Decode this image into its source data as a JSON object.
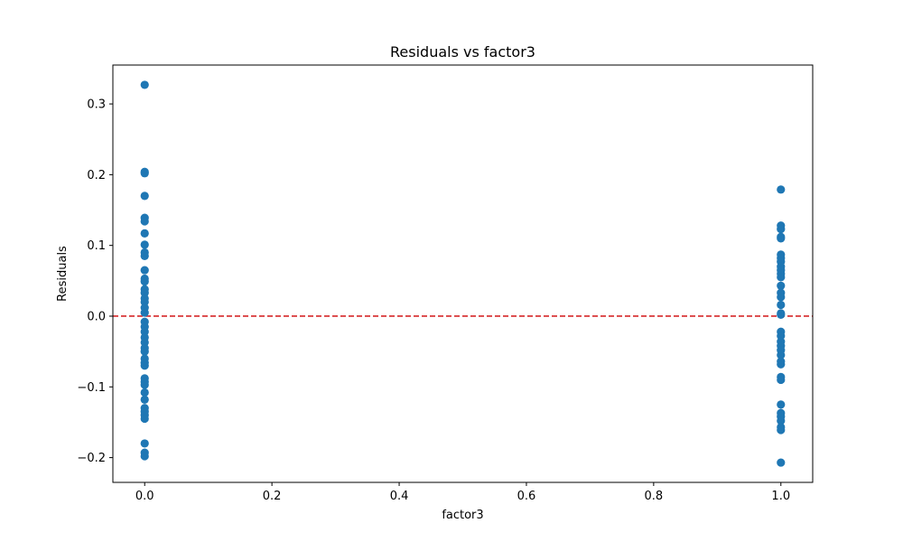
{
  "chart_data": {
    "type": "scatter",
    "title": "Residuals vs factor3",
    "xlabel": "factor3",
    "ylabel": "Residuals",
    "xlim": [
      -0.05,
      1.05
    ],
    "ylim": [
      -0.235,
      0.355
    ],
    "xticks": [
      0.0,
      0.2,
      0.4,
      0.6,
      0.8,
      1.0
    ],
    "xtick_labels": [
      "0.0",
      "0.2",
      "0.4",
      "0.6",
      "0.8",
      "1.0"
    ],
    "yticks": [
      -0.2,
      -0.1,
      0.0,
      0.1,
      0.2,
      0.3
    ],
    "ytick_labels": [
      "−0.2",
      "−0.1",
      "0.0",
      "0.1",
      "0.2",
      "0.3"
    ],
    "grid": false,
    "reference_line": {
      "y": 0.0,
      "style": "dashed",
      "color": "#d62728"
    },
    "marker_color": "#1f77b4",
    "series": [
      {
        "points": [
          [
            0,
            0.327
          ],
          [
            0,
            0.204
          ],
          [
            0,
            0.202
          ],
          [
            0,
            0.17
          ],
          [
            0,
            0.139
          ],
          [
            0,
            0.134
          ],
          [
            0,
            0.117
          ],
          [
            0,
            0.101
          ],
          [
            0,
            0.09
          ],
          [
            0,
            0.085
          ],
          [
            0,
            0.065
          ],
          [
            0,
            0.053
          ],
          [
            0,
            0.049
          ],
          [
            0,
            0.038
          ],
          [
            0,
            0.033
          ],
          [
            0,
            0.025
          ],
          [
            0,
            0.02
          ],
          [
            0,
            0.012
          ],
          [
            0,
            0.005
          ],
          [
            0,
            -0.008
          ],
          [
            0,
            -0.015
          ],
          [
            0,
            -0.022
          ],
          [
            0,
            -0.03
          ],
          [
            0,
            -0.037
          ],
          [
            0,
            -0.045
          ],
          [
            0,
            -0.05
          ],
          [
            0,
            -0.06
          ],
          [
            0,
            -0.066
          ],
          [
            0,
            -0.07
          ],
          [
            0,
            -0.088
          ],
          [
            0,
            -0.093
          ],
          [
            0,
            -0.097
          ],
          [
            0,
            -0.108
          ],
          [
            0,
            -0.118
          ],
          [
            0,
            -0.13
          ],
          [
            0,
            -0.135
          ],
          [
            0,
            -0.14
          ],
          [
            0,
            -0.145
          ],
          [
            0,
            -0.18
          ],
          [
            0,
            -0.193
          ],
          [
            0,
            -0.198
          ],
          [
            1,
            0.179
          ],
          [
            1,
            0.128
          ],
          [
            1,
            0.123
          ],
          [
            1,
            0.112
          ],
          [
            1,
            0.11
          ],
          [
            1,
            0.087
          ],
          [
            1,
            0.082
          ],
          [
            1,
            0.077
          ],
          [
            1,
            0.07
          ],
          [
            1,
            0.065
          ],
          [
            1,
            0.06
          ],
          [
            1,
            0.055
          ],
          [
            1,
            0.043
          ],
          [
            1,
            0.033
          ],
          [
            1,
            0.027
          ],
          [
            1,
            0.016
          ],
          [
            1,
            0.004
          ],
          [
            1,
            0.002
          ],
          [
            1,
            -0.022
          ],
          [
            1,
            -0.028
          ],
          [
            1,
            -0.036
          ],
          [
            1,
            -0.042
          ],
          [
            1,
            -0.048
          ],
          [
            1,
            -0.055
          ],
          [
            1,
            -0.064
          ],
          [
            1,
            -0.068
          ],
          [
            1,
            -0.086
          ],
          [
            1,
            -0.09
          ],
          [
            1,
            -0.125
          ],
          [
            1,
            -0.137
          ],
          [
            1,
            -0.142
          ],
          [
            1,
            -0.148
          ],
          [
            1,
            -0.157
          ],
          [
            1,
            -0.161
          ],
          [
            1,
            -0.207
          ]
        ]
      }
    ]
  }
}
